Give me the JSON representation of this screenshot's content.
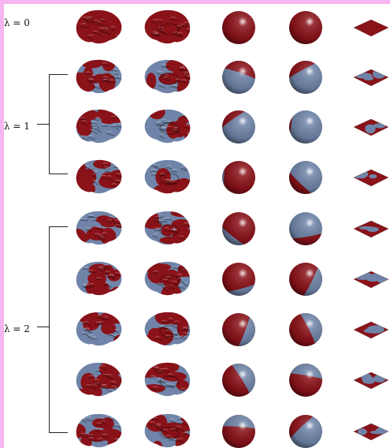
{
  "labels": {
    "lambda0": "λ = 0",
    "lambda1": "λ = 1",
    "lambda2": "λ = 2"
  },
  "colors": {
    "red": "#8a1219",
    "blue": "#6f84a8",
    "background": "#ffffff",
    "page_border": "#f6b4f0"
  },
  "groups": [
    {
      "label_key": "lambda0",
      "rows": 1
    },
    {
      "label_key": "lambda1",
      "rows": 3
    },
    {
      "label_key": "lambda2",
      "rows": 5
    }
  ],
  "columns": [
    "brain-lateral-view",
    "brain-medial-view",
    "sphere-view-1",
    "sphere-view-2",
    "flat-map"
  ],
  "rows": [
    {
      "lambda": 0,
      "red_fraction": [
        1.0,
        1.0,
        1.0,
        1.0,
        1.0
      ]
    },
    {
      "lambda": 1,
      "red_fraction": [
        0.5,
        0.6,
        0.45,
        0.35,
        0.5
      ]
    },
    {
      "lambda": 1,
      "red_fraction": [
        0.45,
        0.35,
        0.3,
        0.15,
        0.35
      ]
    },
    {
      "lambda": 1,
      "red_fraction": [
        0.6,
        0.5,
        0.85,
        0.35,
        0.5
      ]
    },
    {
      "lambda": 2,
      "red_fraction": [
        0.55,
        0.45,
        0.7,
        0.35,
        0.5
      ]
    },
    {
      "lambda": 2,
      "red_fraction": [
        0.5,
        0.45,
        0.7,
        0.6,
        0.5
      ]
    },
    {
      "lambda": 2,
      "red_fraction": [
        0.5,
        0.5,
        0.6,
        0.5,
        0.5
      ]
    },
    {
      "lambda": 2,
      "red_fraction": [
        0.5,
        0.45,
        0.5,
        0.55,
        0.5
      ]
    },
    {
      "lambda": 2,
      "red_fraction": [
        0.5,
        0.5,
        0.55,
        0.4,
        0.5
      ]
    }
  ]
}
